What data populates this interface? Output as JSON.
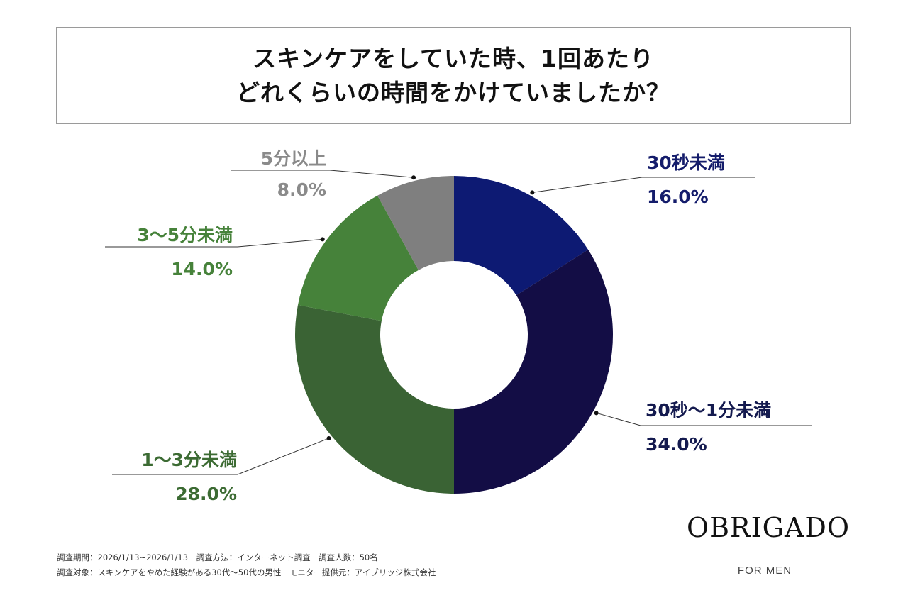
{
  "title": {
    "line1": "スキンケアをしていた時、1回あたり",
    "line2": "どれくらいの時間をかけていましたか？"
  },
  "chart_data": {
    "type": "pie",
    "title": "スキンケアをしていた時、1回あたりどれくらいの時間をかけていましたか？",
    "categories": [
      "30秒未満",
      "30秒〜1分未満",
      "1〜3分未満",
      "3〜5分未満",
      "5分以上"
    ],
    "values": [
      16.0,
      34.0,
      28.0,
      14.0,
      8.0
    ],
    "value_labels": [
      "16.0%",
      "34.0%",
      "28.0%",
      "14.0%",
      "8.0%"
    ],
    "colors": [
      "#0d1a73",
      "#130d45",
      "#3a6334",
      "#46823a",
      "#7f7f7f"
    ],
    "label_colors": [
      "#141c6b",
      "#141a4f",
      "#3c6b33",
      "#46823a",
      "#8a8a8a"
    ],
    "donut": true
  },
  "footer": {
    "line1": "調査期間：2026/1/13~2026/1/13　調査方法：インターネット調査　調査人数：50名",
    "line2": "調査対象：スキンケアをやめた経験がある30代〜50代の男性　モニター提供元：アイブリッジ株式会社"
  },
  "brand": {
    "name": "OBRIGADO",
    "sub": "FOR MEN"
  }
}
